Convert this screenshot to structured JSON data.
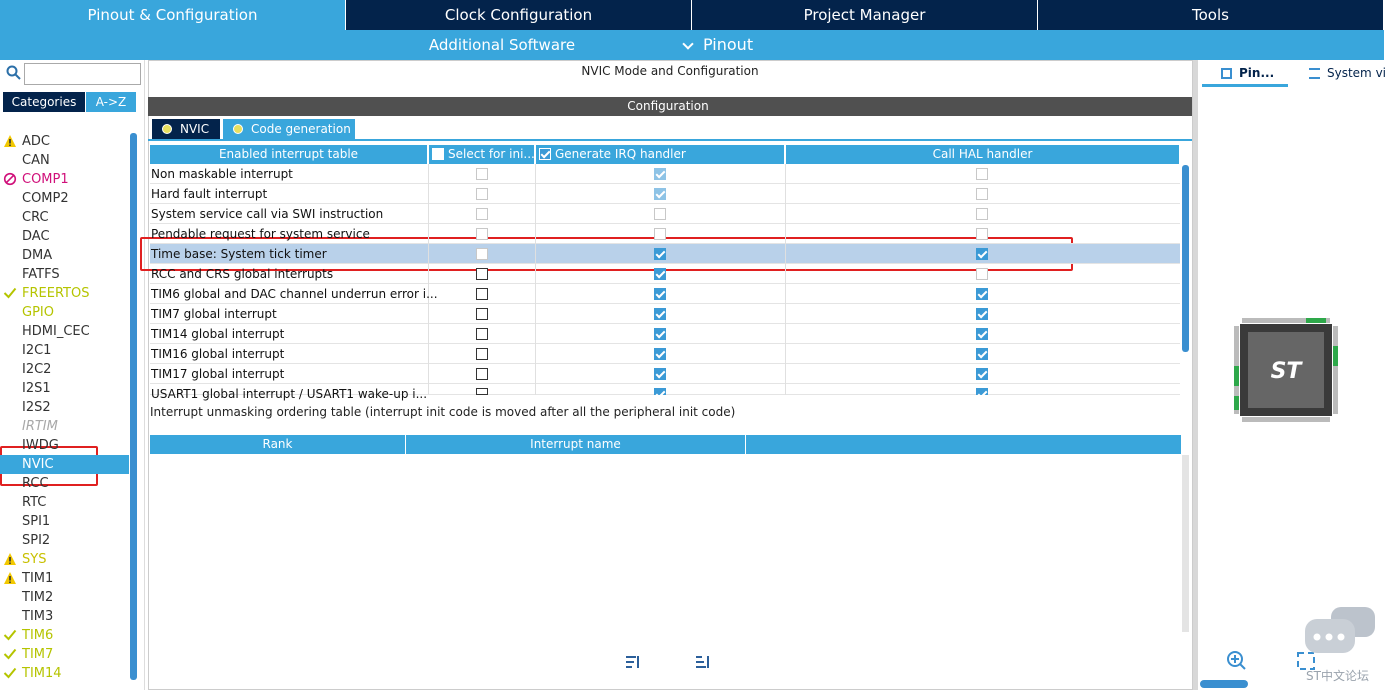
{
  "top_tabs": [
    "Pinout & Configuration",
    "Clock Configuration",
    "Project Manager",
    "Tools"
  ],
  "sub_tabs": [
    "Additional Software",
    "Pinout"
  ],
  "sidebar": {
    "tabs": [
      "Categories",
      "A->Z"
    ],
    "items": [
      {
        "name": "ADC",
        "icon": "warning"
      },
      {
        "name": "CAN"
      },
      {
        "name": "COMP1",
        "icon": "error",
        "color": "#d0107a"
      },
      {
        "name": "COMP2"
      },
      {
        "name": "CRC"
      },
      {
        "name": "DAC"
      },
      {
        "name": "DMA"
      },
      {
        "name": "FATFS"
      },
      {
        "name": "FREERTOS",
        "icon": "ok",
        "color": "#b5c400"
      },
      {
        "name": "GPIO",
        "color": "#b5c400"
      },
      {
        "name": "HDMI_CEC"
      },
      {
        "name": "I2C1"
      },
      {
        "name": "I2C2"
      },
      {
        "name": "I2S1"
      },
      {
        "name": "I2S2"
      },
      {
        "name": "IRTIM",
        "color": "#a8a8a8",
        "italic": true
      },
      {
        "name": "IWDG"
      },
      {
        "name": "NVIC",
        "selected": true
      },
      {
        "name": "RCC"
      },
      {
        "name": "RTC"
      },
      {
        "name": "SPI1"
      },
      {
        "name": "SPI2"
      },
      {
        "name": "SYS",
        "icon": "warning",
        "color": "#c8c000"
      },
      {
        "name": "TIM1",
        "icon": "warning"
      },
      {
        "name": "TIM2"
      },
      {
        "name": "TIM3"
      },
      {
        "name": "TIM6",
        "icon": "ok",
        "color": "#b5c400"
      },
      {
        "name": "TIM7",
        "icon": "ok",
        "color": "#b5c400"
      },
      {
        "name": "TIM14",
        "icon": "ok",
        "color": "#b5c400"
      }
    ]
  },
  "main": {
    "title": "NVIC Mode and Configuration",
    "config_header": "Configuration",
    "tabs": [
      "NVIC",
      "Code generation"
    ],
    "table": {
      "headers": [
        "Enabled interrupt table",
        "Select for ini...",
        "Generate IRQ handler",
        "Call HAL handler"
      ],
      "header_checks": [
        false,
        true
      ],
      "rows": [
        {
          "name": "Non maskable interrupt",
          "checks": [
            false,
            true,
            false
          ],
          "locked": [
            true,
            true,
            true
          ]
        },
        {
          "name": "Hard fault interrupt",
          "checks": [
            false,
            true,
            false
          ],
          "locked": [
            true,
            true,
            true
          ]
        },
        {
          "name": "System service call via SWI instruction",
          "checks": [
            false,
            false,
            false
          ],
          "locked": [
            true,
            true,
            true
          ]
        },
        {
          "name": "Pendable request for system service",
          "checks": [
            false,
            false,
            false
          ],
          "locked": [
            true,
            true,
            true
          ]
        },
        {
          "name": "Time base: System tick timer",
          "checks": [
            false,
            true,
            true
          ],
          "locked": [
            true,
            false,
            false
          ],
          "selected": true
        },
        {
          "name": "RCC and CRS global interrupts",
          "checks": [
            false,
            true,
            false
          ],
          "locked": [
            false,
            false,
            true
          ]
        },
        {
          "name": "TIM6 global and DAC channel underrun error i...",
          "checks": [
            false,
            true,
            true
          ],
          "locked": [
            false,
            false,
            false
          ]
        },
        {
          "name": "TIM7 global interrupt",
          "checks": [
            false,
            true,
            true
          ],
          "locked": [
            false,
            false,
            false
          ]
        },
        {
          "name": "TIM14 global interrupt",
          "checks": [
            false,
            true,
            true
          ],
          "locked": [
            false,
            false,
            false
          ]
        },
        {
          "name": "TIM16 global interrupt",
          "checks": [
            false,
            true,
            true
          ],
          "locked": [
            false,
            false,
            false
          ]
        },
        {
          "name": "TIM17 global interrupt",
          "checks": [
            false,
            true,
            true
          ],
          "locked": [
            false,
            false,
            false
          ]
        },
        {
          "name": "USART1 global interrupt / USART1 wake-up i...",
          "checks": [
            false,
            true,
            true
          ],
          "locked": [
            false,
            false,
            false
          ]
        }
      ]
    },
    "ordering_caption": "Interrupt unmasking ordering table (interrupt init code is moved after all the peripheral init code)",
    "order_headers": [
      "Rank",
      "Interrupt name"
    ]
  },
  "right_panel": {
    "tabs": [
      "Pin...",
      "System vi"
    ],
    "watermark": "ST中文论坛"
  }
}
